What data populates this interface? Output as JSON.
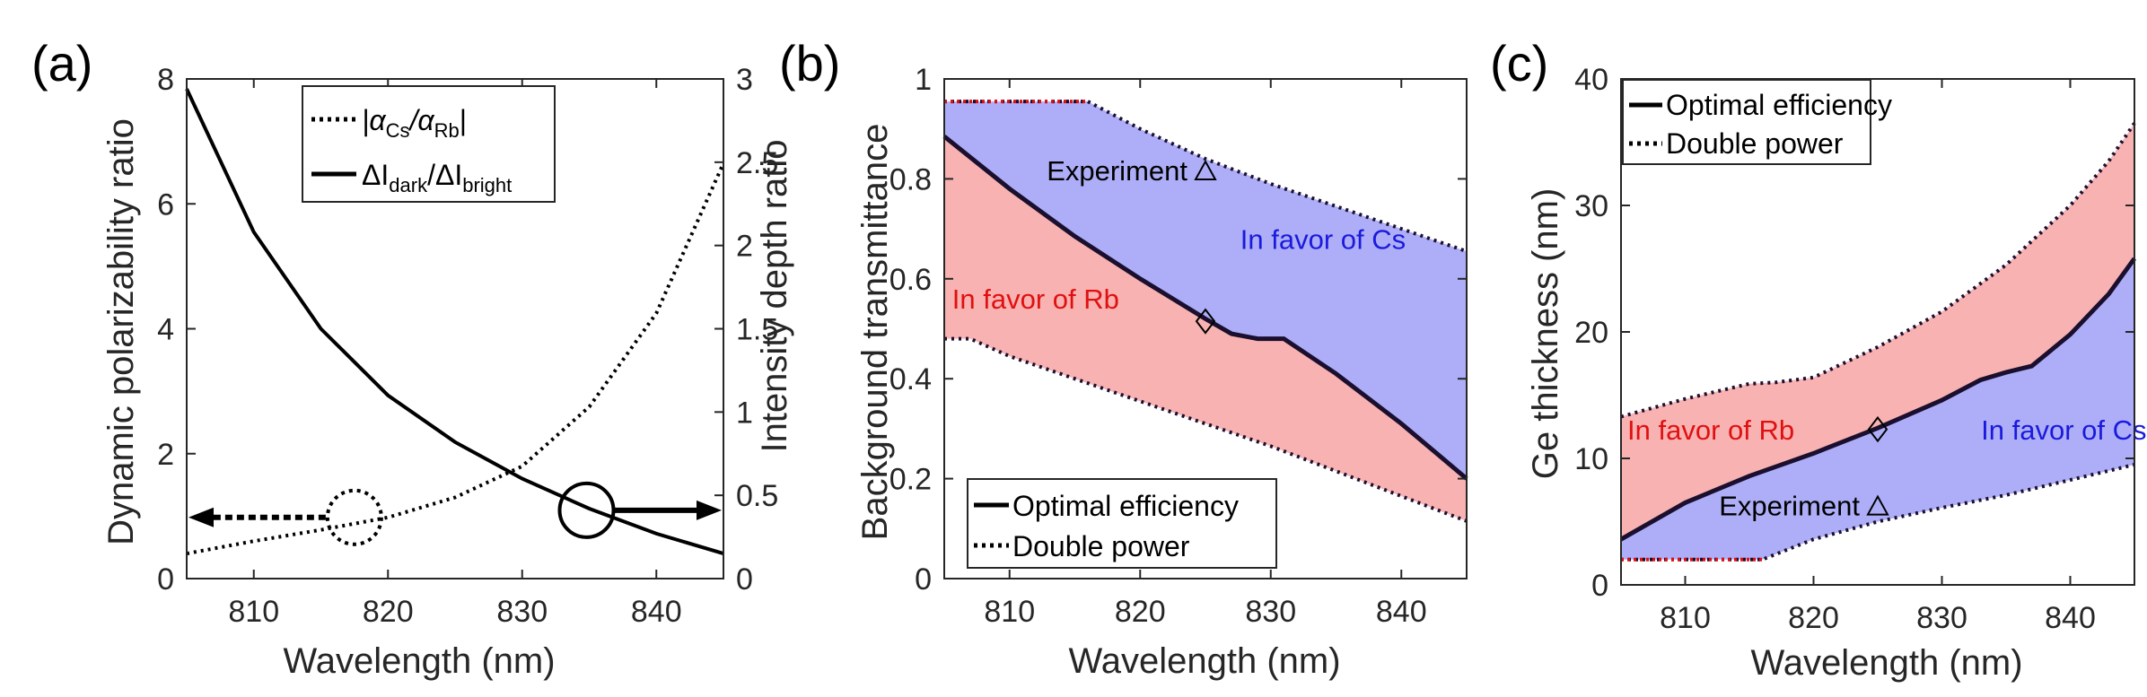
{
  "chart_data": [
    {
      "panel": "(a)",
      "type": "line",
      "xlabel": "Wavelength (nm)",
      "ylabel": "Dynamic polarizability ratio",
      "y2label": "Intensity depth ratio",
      "xlim": [
        805,
        845
      ],
      "ylim": [
        0,
        8
      ],
      "y2lim": [
        0,
        3
      ],
      "xticks": [
        810,
        820,
        830,
        840
      ],
      "yticks": [
        0,
        2,
        4,
        6,
        8
      ],
      "y2ticks": [
        "0",
        "0.5",
        "1",
        "1.5",
        "2",
        "2.5",
        "3"
      ],
      "series": [
        {
          "name": "|αCs/αRb|",
          "legend_main": "|α",
          "legend_sub1": "Cs",
          "legend_mid": "/α",
          "legend_sub2": "Rb",
          "legend_end": "|",
          "axis": "left",
          "style": "dotted",
          "x": [
            805,
            810,
            815,
            820,
            825,
            830,
            835,
            840,
            845
          ],
          "y": [
            0.4,
            0.6,
            0.78,
            0.98,
            1.3,
            1.8,
            2.75,
            4.25,
            6.65
          ]
        },
        {
          "name": "ΔIdark/ΔIbright",
          "legend_main": "ΔI",
          "legend_sub1": "dark",
          "legend_mid": "/ΔI",
          "legend_sub2": "bright",
          "legend_end": "",
          "axis": "right",
          "style": "solid",
          "x": [
            805,
            810,
            815,
            820,
            825,
            830,
            835,
            840,
            845
          ],
          "y": [
            2.94,
            2.08,
            1.5,
            1.1,
            0.82,
            0.6,
            0.42,
            0.27,
            0.15
          ]
        }
      ],
      "markers": [
        {
          "type": "dotted-circle",
          "x": 817.5,
          "y": 0.98,
          "arrow": "left"
        },
        {
          "type": "solid-circle",
          "x": 834.8,
          "y": 0.41,
          "axis": "right",
          "arrow": "right"
        }
      ]
    },
    {
      "panel": "(b)",
      "type": "area",
      "xlabel": "Wavelength (nm)",
      "ylabel": "Background transmittance",
      "xlim": [
        805,
        845
      ],
      "ylim": [
        0,
        1
      ],
      "xticks": [
        810,
        820,
        830,
        840
      ],
      "yticks": [
        "0",
        "0.2",
        "0.4",
        "0.6",
        "0.8",
        "1"
      ],
      "series": [
        {
          "name": "Optimal efficiency",
          "style": "solid",
          "x": [
            805,
            810,
            815,
            820,
            825,
            827,
            829,
            831,
            835,
            840,
            845
          ],
          "y": [
            0.885,
            0.78,
            0.685,
            0.6,
            0.52,
            0.49,
            0.48,
            0.48,
            0.41,
            0.31,
            0.2
          ]
        },
        {
          "name": "Double power",
          "style": "dotted",
          "upper_x": [
            805,
            816,
            820,
            825,
            830,
            835,
            840,
            845
          ],
          "upper_y": [
            0.955,
            0.955,
            0.9,
            0.84,
            0.79,
            0.745,
            0.7,
            0.655
          ],
          "lower_x": [
            805,
            807,
            810,
            815,
            820,
            825,
            830,
            835,
            840,
            845
          ],
          "lower_y": [
            0.48,
            0.48,
            0.445,
            0.4,
            0.355,
            0.31,
            0.265,
            0.215,
            0.165,
            0.115
          ]
        }
      ],
      "region_labels": [
        {
          "text": "In favor of Cs",
          "color": "#1a1adc",
          "x": 834,
          "y": 0.66
        },
        {
          "text": "In favor of Rb",
          "color": "#e01010",
          "x": 812,
          "y": 0.54
        }
      ],
      "annotations": [
        {
          "text": "Experiment",
          "marker": "triangle",
          "x": 825,
          "y": 0.815
        },
        {
          "marker": "diamond",
          "x": 825,
          "y": 0.515
        }
      ],
      "legend": [
        "Optimal efficiency",
        "Double power"
      ]
    },
    {
      "panel": "(c)",
      "type": "area",
      "xlabel": "Wavelength (nm)",
      "ylabel": "Ge thickness (nm)",
      "xlim": [
        805,
        845
      ],
      "ylim": [
        0,
        40
      ],
      "xticks": [
        810,
        820,
        830,
        840
      ],
      "yticks": [
        "0",
        "10",
        "20",
        "30",
        "40"
      ],
      "series": [
        {
          "name": "Optimal efficiency",
          "style": "solid",
          "x": [
            805,
            810,
            815,
            820,
            825,
            830,
            833,
            835,
            837,
            840,
            843,
            845
          ],
          "y": [
            3.6,
            6.5,
            8.6,
            10.4,
            12.4,
            14.6,
            16.2,
            16.8,
            17.3,
            19.8,
            23.0,
            25.8
          ]
        },
        {
          "name": "Double power",
          "style": "dotted",
          "upper_x": [
            805,
            810,
            815,
            817,
            820,
            825,
            830,
            835,
            840,
            843,
            845
          ],
          "upper_y": [
            13.3,
            14.7,
            15.9,
            16.0,
            16.4,
            18.8,
            21.6,
            25.3,
            30.0,
            33.5,
            36.5
          ],
          "lower_x": [
            805,
            816,
            820,
            825,
            830,
            835,
            840,
            845
          ],
          "lower_y": [
            2.0,
            2.0,
            3.6,
            5.0,
            6.1,
            7.1,
            8.3,
            9.5
          ]
        }
      ],
      "region_labels": [
        {
          "text": "In favor of Rb",
          "color": "#e01010",
          "x": 812,
          "y": 11.5
        },
        {
          "text": "In favor of Cs",
          "color": "#1a1adc",
          "x": 839.5,
          "y": 11.5
        }
      ],
      "annotations": [
        {
          "text": "Experiment",
          "marker": "triangle",
          "x": 825,
          "y": 6.2
        },
        {
          "marker": "diamond",
          "x": 825,
          "y": 12.3
        }
      ],
      "legend": [
        "Optimal efficiency",
        "Double power"
      ]
    }
  ],
  "colors": {
    "cs_fill": "#aeaef8",
    "rb_fill": "#f8b2b2",
    "cs_text": "#1a1adc",
    "rb_text": "#e01010",
    "red_dotted": "#e01010",
    "curve": "#000000",
    "optimal_curve": "#1a0f2e"
  }
}
